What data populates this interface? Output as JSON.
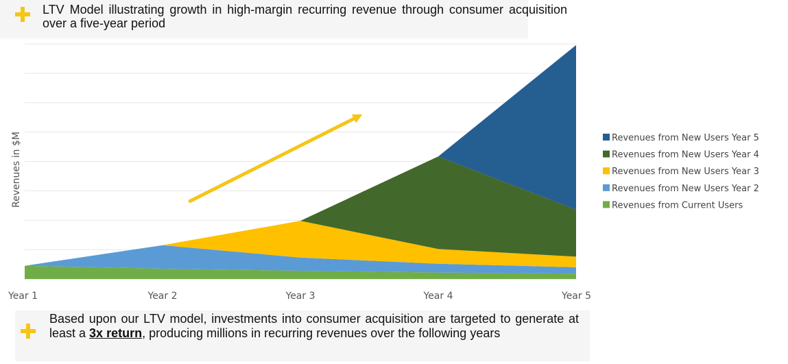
{
  "header": {
    "text": "LTV Model illustrating growth in high-margin recurring revenue through consumer acquisition over a five-year period",
    "icon": "plus-icon",
    "icon_color": "#f5c518"
  },
  "footer": {
    "text_before": "Based upon our LTV model, investments into consumer acquisition are targeted to generate at least a ",
    "emphasis": "3x return",
    "text_after": ", producing millions in recurring revenues over the following years",
    "icon": "plus-icon"
  },
  "chart_data": {
    "type": "area",
    "stacked": true,
    "ylabel": "Revenues in $M",
    "xlabel": "",
    "categories": [
      "Year 1",
      "Year 2",
      "Year 3",
      "Year 4",
      "Year 5"
    ],
    "ylim": [
      0,
      8
    ],
    "grid": true,
    "legend_position": "right",
    "series": [
      {
        "name": "Revenues from Current Users",
        "color": "#70ad47",
        "values": [
          0.45,
          0.35,
          0.28,
          0.22,
          0.18
        ]
      },
      {
        "name": "Revenues from New Users Year 2",
        "color": "#5b9bd5",
        "values": [
          0,
          0.8,
          0.45,
          0.3,
          0.22
        ]
      },
      {
        "name": "Revenues from New Users Year 3",
        "color": "#ffc000",
        "values": [
          0,
          0,
          1.25,
          0.5,
          0.36
        ]
      },
      {
        "name": "Revenues from New Users Year 4",
        "color": "#43682b",
        "values": [
          0,
          0,
          0,
          3.15,
          1.6
        ]
      },
      {
        "name": "Revenues from New Users Year 5",
        "color": "#255e91",
        "values": [
          0,
          0,
          0,
          0,
          5.6
        ]
      }
    ],
    "annotation": {
      "type": "arrow",
      "color": "#f5c518",
      "from": {
        "x": 1.2,
        "y": 2.65
      },
      "to": {
        "x": 2.45,
        "y": 5.6
      }
    }
  }
}
